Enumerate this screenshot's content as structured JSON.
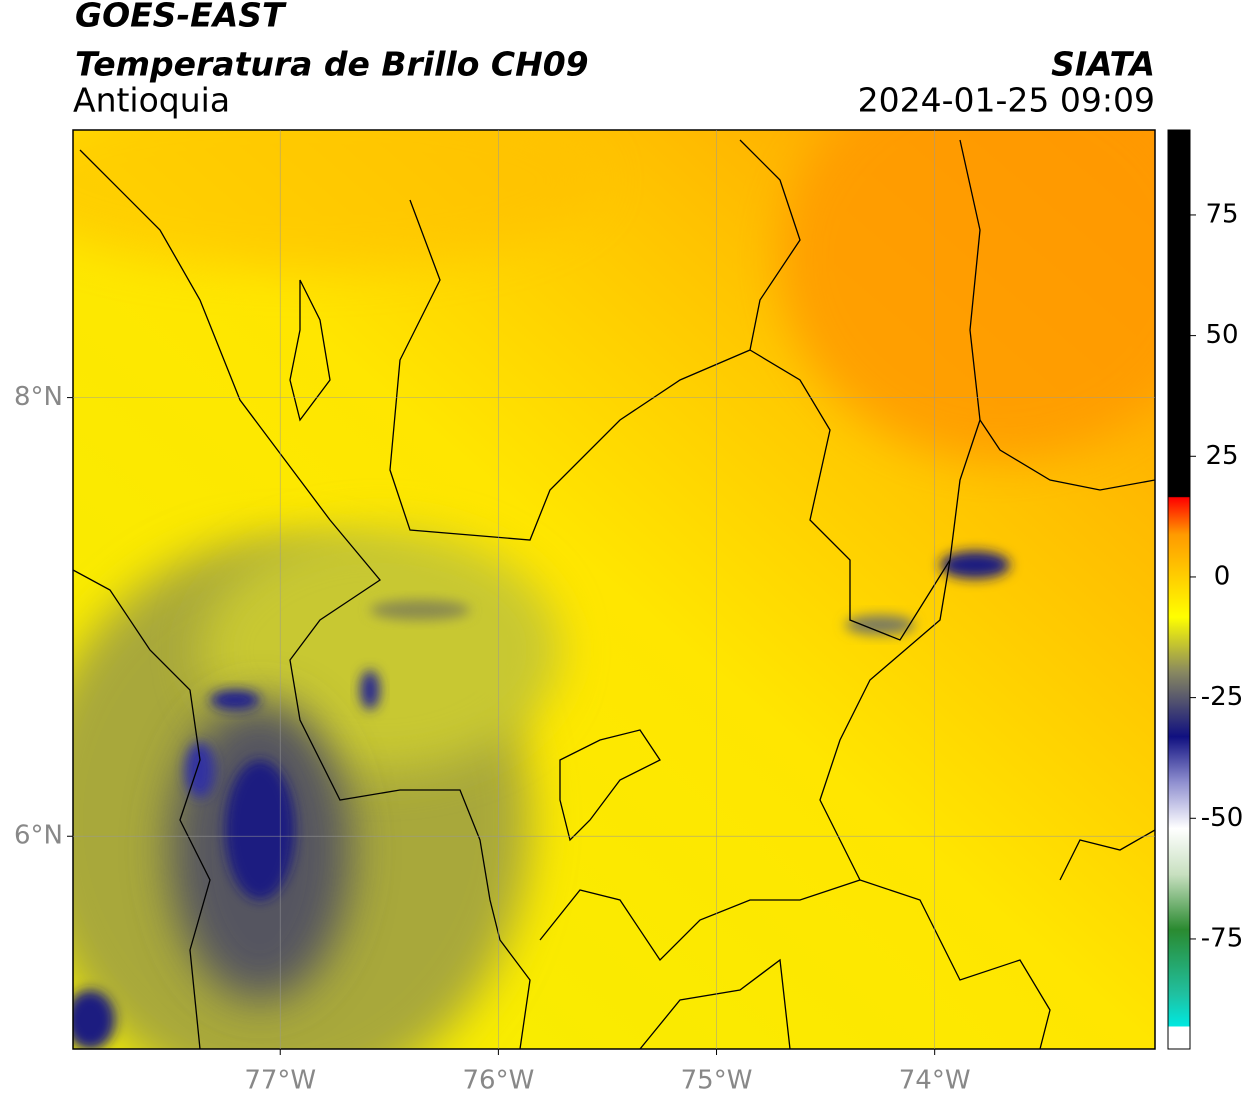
{
  "header": {
    "title": "GOES-EAST",
    "subtitle": "Temperatura de Brillo CH09",
    "region": "Antioquia",
    "source": "SIATA",
    "datetime": "2024-01-25 09:09"
  },
  "map": {
    "xlim": [
      -77.95,
      -72.99
    ],
    "ylim": [
      5.03,
      9.22
    ],
    "xticks": [
      {
        "value": -77,
        "label": "77°W"
      },
      {
        "value": -76,
        "label": "76°W"
      },
      {
        "value": -75,
        "label": "75°W"
      },
      {
        "value": -74,
        "label": "74°W"
      }
    ],
    "yticks": [
      {
        "value": 6,
        "label": "6°N"
      },
      {
        "value": 8,
        "label": "8°N"
      }
    ],
    "grid": true
  },
  "colorbar": {
    "lim": [
      -97.8,
      92.6
    ],
    "ticks": [
      75,
      50,
      25,
      0,
      -25,
      -50,
      -75
    ]
  }
}
